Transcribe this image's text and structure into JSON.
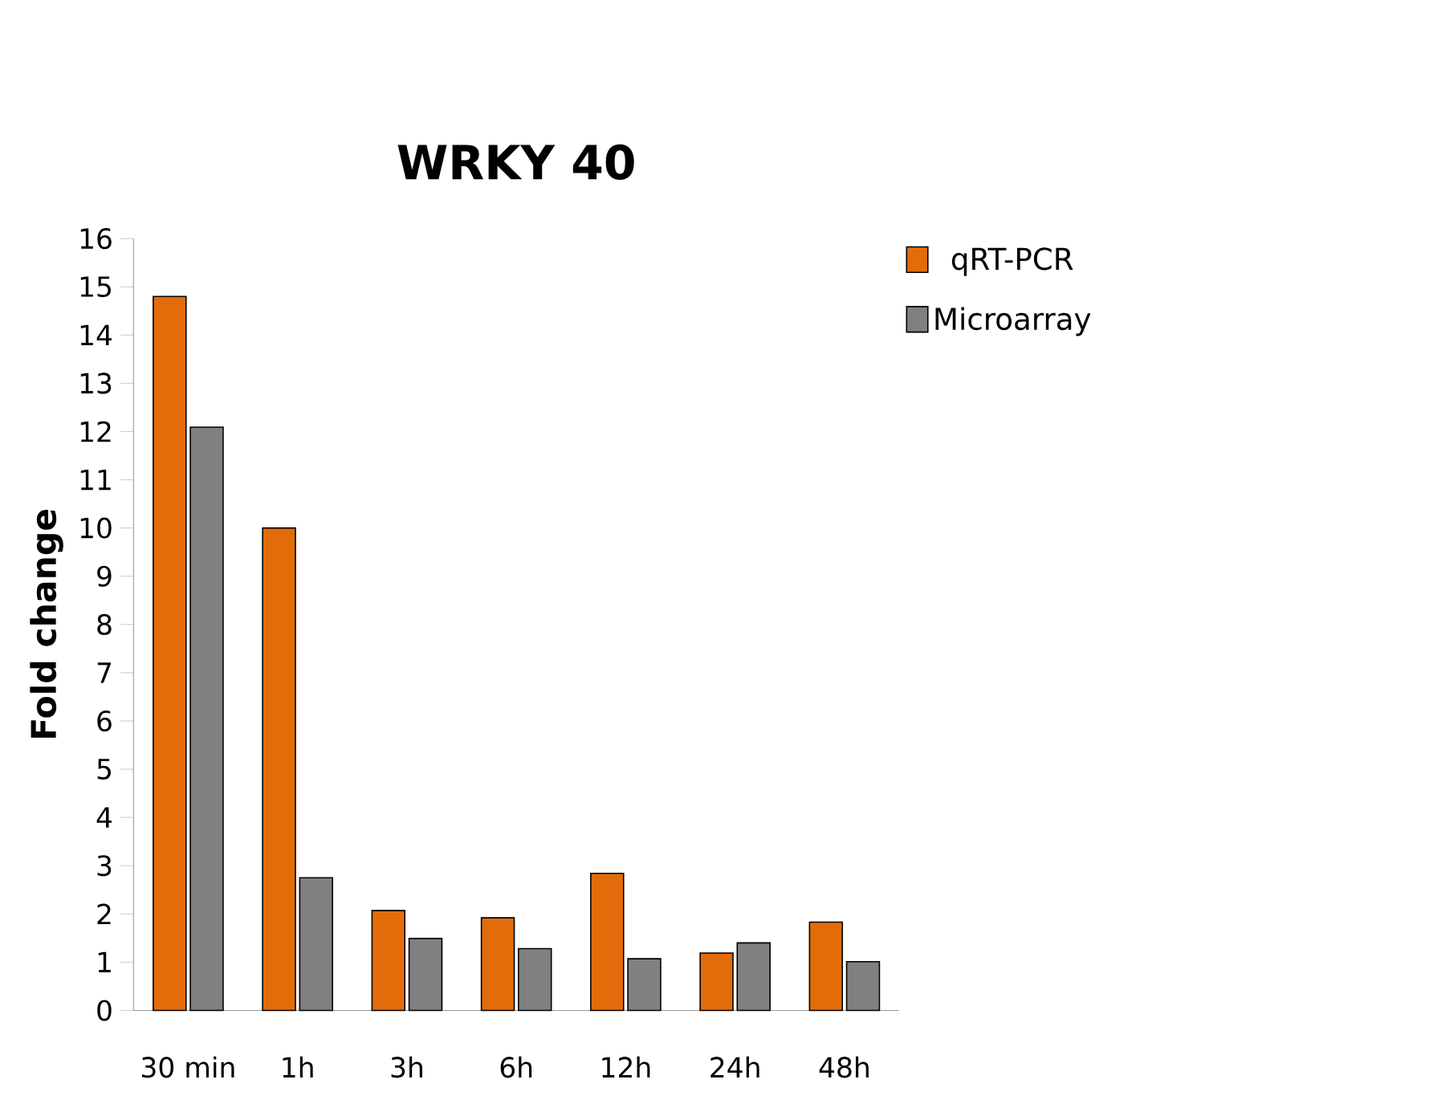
{
  "chart_data": {
    "type": "bar",
    "title": "WRKY 40",
    "ylabel": "Fold change",
    "categories": [
      "30 min",
      "1h",
      "3h",
      "6h",
      "12h",
      "24h",
      "48h"
    ],
    "series": [
      {
        "name": "qRT-PCR",
        "color": "#e36c0a",
        "values": [
          14.8,
          10.0,
          2.07,
          1.92,
          2.84,
          1.19,
          1.83
        ]
      },
      {
        "name": "Microarray",
        "color": "#808080",
        "values": [
          12.09,
          2.75,
          1.49,
          1.28,
          1.07,
          1.4,
          1.01
        ]
      }
    ],
    "ylim": [
      0,
      16
    ],
    "yticks": [
      0,
      1,
      2,
      3,
      4,
      5,
      6,
      7,
      8,
      9,
      10,
      11,
      12,
      13,
      14,
      15,
      16
    ],
    "grid": false,
    "legend": "top right"
  }
}
